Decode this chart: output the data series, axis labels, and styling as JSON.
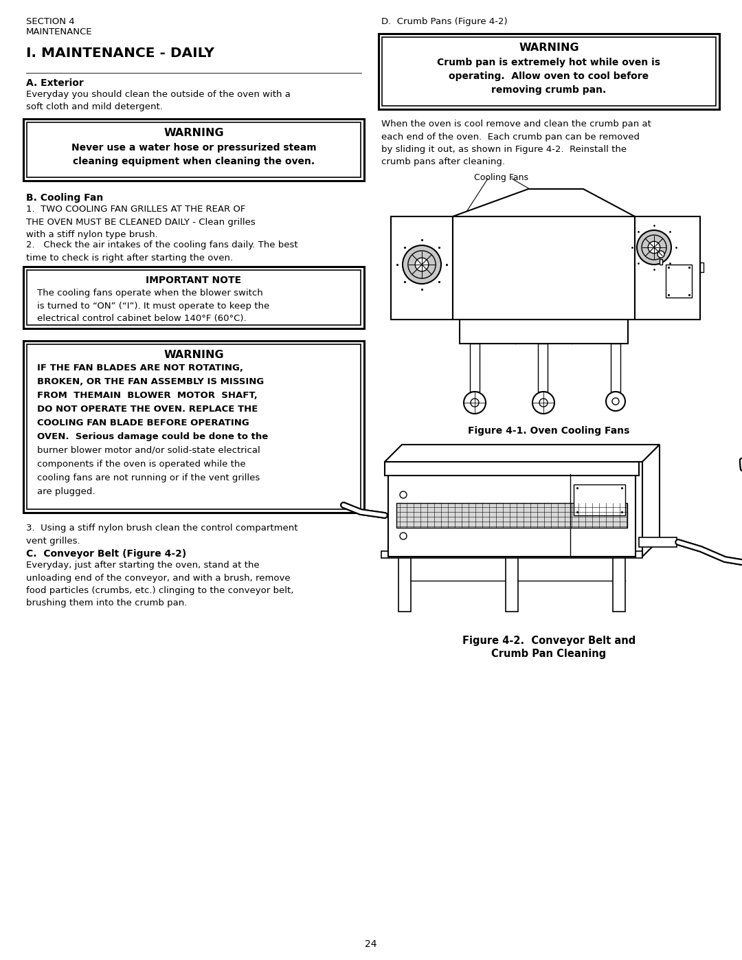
{
  "bg_color": "#ffffff",
  "text_color": "#000000",
  "page_number": "24",
  "section_header_line1": "SECTION 4",
  "section_header_line2": "MAINTENANCE",
  "main_title": "I. MAINTENANCE - DAILY",
  "sec_a_title": "A. Exterior",
  "sec_a_body": "Everyday you should clean the outside of the oven with a\nsoft cloth and mild detergent.",
  "warn1_title": "WARNING",
  "warn1_body": "Never use a water hose or pressurized steam\ncleaning equipment when cleaning the oven.",
  "sec_b_title": "B. Cooling Fan",
  "sec_b_p1": "1.  TWO COOLING FAN GRILLES AT THE REAR OF\nTHE OVEN MUST BE CLEANED DAILY - Clean grilles\nwith a stiff nylon type brush.",
  "sec_b_p2": "2.   Check the air intakes of the cooling fans daily. The best\ntime to check is right after starting the oven.",
  "imp_note_title": "IMPORTANT NOTE",
  "imp_note_body": "The cooling fans operate when the blower switch\nis turned to “ON” (“I”). It must operate to keep the\nelectrical control cabinet below 140°F (60°C).",
  "warn2_title": "WARNING",
  "warn2_body": "IF THE FAN BLADES ARE NOT ROTATING,\nBROKEN, OR THE FAN ASSEMBLY IS MISSING\nFROM  THEMAIN  BLOWER  MOTOR  SHAFT,\nDO NOT OPERATE THE OVEN. REPLACE THE\nCOOLING FAN BLADE BEFORE OPERATING\nOVEN.  Serious damage could be done to the\nburner blower motor and/or solid-state electrical\ncomponents if the oven is operated while the\ncooling fans are not running or if the vent grilles\nare plugged.",
  "sec_b_p3": "3.  Using a stiff nylon brush clean the control compartment\nvent grilles.",
  "sec_c_title": "C.  Conveyor Belt (Figure 4-2)",
  "sec_c_body": "Everyday, just after starting the oven, stand at the\nunloading end of the conveyor, and with a brush, remove\nfood particles (crumbs, etc.) clinging to the conveyor belt,\nbrushing them into the crumb pan.",
  "sec_d_title": "D.  Crumb Pans (Figure 4-2)",
  "warn3_title": "WARNING",
  "warn3_body": "Crumb pan is extremely hot while oven is\noperating.  Allow oven to cool before\nremoving crumb pan.",
  "sec_d_body": "When the oven is cool remove and clean the crumb pan at\neach end of the oven.  Each crumb pan can be removed\nby sliding it out, as shown in Figure 4-2.  Reinstall the\ncrumb pans after cleaning.",
  "fig1_label": "Cooling Fans",
  "fig1_caption": "Figure 4-1. Oven Cooling Fans",
  "fig2_caption_line1": "Figure 4-2.  Conveyor Belt and",
  "fig2_caption_line2": "Crumb Pan Cleaning"
}
